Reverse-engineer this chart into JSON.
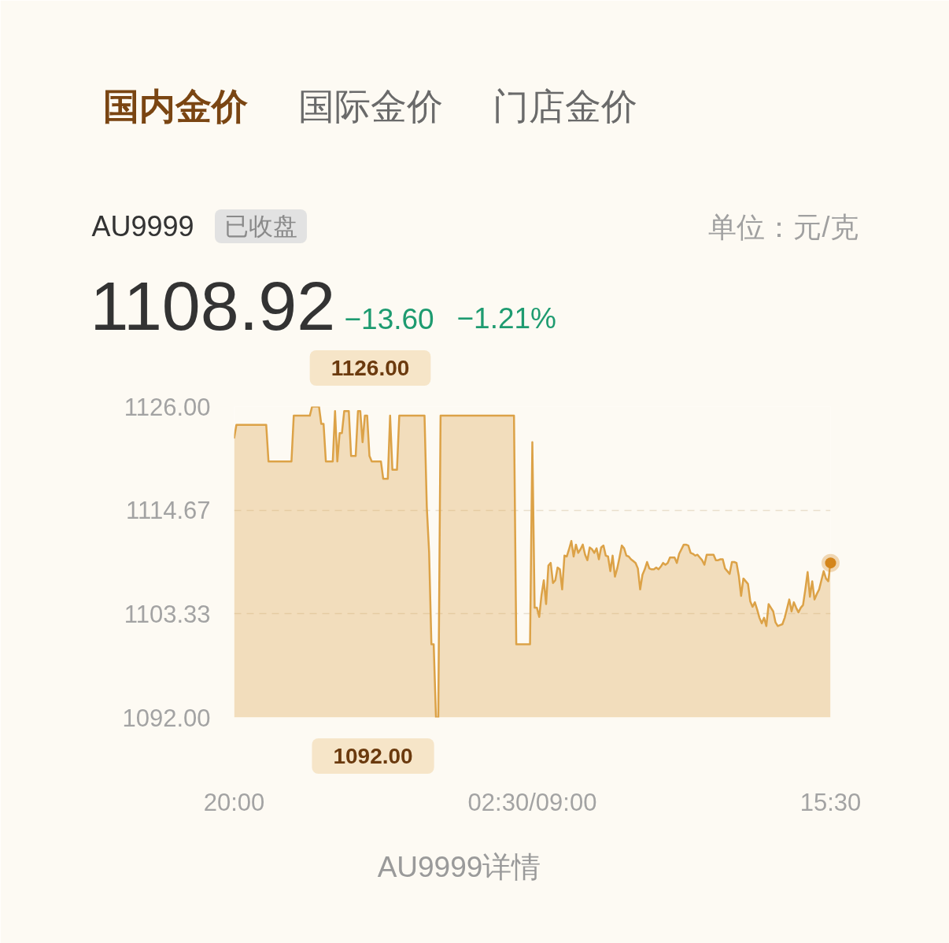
{
  "chart_data": {
    "type": "area",
    "title": "AU9999",
    "annotations": [
      "国内金价",
      "国际金价",
      "门店金价",
      "已收盘",
      "单位：元/克",
      "1108.92",
      "−13.60",
      "−1.21%",
      "1126.00",
      {
        "text": "1092.00",
        "y": 1092
      },
      "AU9999详情"
    ],
    "categories": [
      "20:00",
      null,
      null,
      null,
      null,
      null,
      null,
      null,
      null,
      null,
      null,
      null,
      null,
      null,
      null,
      null,
      null,
      null,
      null,
      null,
      null,
      null,
      null,
      null,
      null,
      null,
      null,
      null,
      null,
      null,
      null,
      null,
      null,
      null,
      null,
      null,
      null,
      null,
      null,
      null,
      null,
      null,
      null,
      null,
      null,
      null,
      null,
      null,
      null,
      null,
      null,
      null,
      null,
      null,
      null,
      null,
      null,
      null,
      null,
      null,
      null,
      null,
      null,
      null,
      null,
      null,
      null,
      null,
      null,
      null,
      null,
      null,
      null,
      null,
      null,
      null,
      null,
      null,
      null,
      null,
      null,
      null,
      null,
      null,
      null,
      null,
      null,
      null,
      null,
      null,
      null,
      null,
      null,
      null,
      null,
      null,
      null,
      null,
      null,
      null,
      null,
      null,
      null,
      null,
      null,
      null,
      null,
      null,
      null,
      null,
      null,
      null,
      null,
      null,
      null,
      null,
      null,
      null,
      null,
      null,
      null,
      null,
      null,
      null,
      null,
      null,
      null,
      null,
      null,
      null,
      "02:30/09:00",
      null,
      null,
      null,
      null,
      null,
      null,
      null,
      null,
      null,
      null,
      null,
      null,
      null,
      null,
      null,
      null,
      null,
      null,
      null,
      null,
      null,
      null,
      null,
      null,
      null,
      null,
      null,
      null,
      null,
      null,
      null,
      null,
      null,
      null,
      null,
      null,
      null,
      null,
      null,
      null,
      null,
      null,
      null,
      null,
      null,
      null,
      null,
      null,
      null,
      null,
      null,
      null,
      null,
      null,
      null,
      null,
      null,
      null,
      null,
      null,
      null,
      null,
      null,
      null,
      null,
      null,
      null,
      null,
      null,
      null,
      null,
      null,
      null,
      null,
      null,
      null,
      null,
      null,
      null,
      null,
      null,
      null,
      null,
      null,
      null,
      null,
      null,
      null,
      null,
      null,
      null,
      null,
      null,
      null,
      null,
      null,
      null,
      null,
      null,
      null,
      null,
      null,
      null,
      null,
      null,
      null,
      null,
      null,
      null,
      null,
      null,
      null,
      null,
      null,
      null,
      null,
      null,
      null,
      null,
      null,
      null,
      null,
      null,
      null,
      null,
      null,
      null,
      null,
      null,
      "15:30"
    ],
    "ylim": [
      1092,
      1126
    ],
    "yticks": [
      {
        "value": 1092,
        "label": "1092.00"
      },
      {
        "value": 1103.33,
        "label": "1103.33"
      },
      {
        "value": 1114.67,
        "label": "1114.67"
      },
      {
        "value": 1126,
        "label": "1126.00"
      }
    ],
    "grid": "y",
    "series": [
      {
        "color": "#dca247",
        "values": [
          1122.5,
          1124,
          1124,
          1124,
          1124,
          1124,
          1124,
          1124,
          1124,
          1124,
          1124,
          1124,
          1124,
          1124,
          1124,
          1120,
          1120,
          1120,
          1120,
          1120,
          1120,
          1120,
          1120,
          1120,
          1120,
          1120,
          1125,
          1125,
          1125,
          1125,
          1125,
          1125,
          1125,
          1125,
          1126,
          1126,
          1126,
          1126,
          1124.1,
          1124.1,
          1120,
          1120,
          1120,
          1120,
          1125.5,
          1120,
          1123.1,
          1123.1,
          1125.5,
          1125.5,
          1125.5,
          1120.6,
          1120.6,
          1120.6,
          1125.5,
          1125.5,
          1122.1,
          1125,
          1125,
          1120.6,
          1120,
          1120,
          1120,
          1120,
          1120,
          1118.1,
          1118.1,
          1118.1,
          1125,
          1119.1,
          1119.1,
          1119.1,
          1125,
          1125,
          1125,
          1125,
          1125,
          1125,
          1125,
          1125,
          1125,
          1125,
          1125,
          1125,
          1115,
          1110.1,
          1100,
          1100,
          1092,
          1092,
          1125,
          1125,
          1125,
          1125,
          1125,
          1125,
          1125,
          1125,
          1125,
          1125,
          1125,
          1125,
          1125,
          1125,
          1125,
          1125,
          1125,
          1125,
          1125,
          1125,
          1125,
          1125,
          1125,
          1125,
          1125,
          1125,
          1125,
          1125,
          1125,
          1125,
          1125,
          1125,
          1125,
          1100,
          1100,
          1100,
          1100,
          1100,
          1100,
          1100,
          1122.1,
          1104.0,
          1104.0,
          1103.0,
          1105.4,
          1107.0,
          1104.4,
          1108.6,
          1108.9,
          1106.7,
          1107.0,
          1108.4,
          1108.2,
          1106.0,
          1109.7,
          1109.6,
          1110.4,
          1111.3,
          1109.6,
          1110.9,
          1110.0,
          1110.4,
          1110.9,
          1109.8,
          1109.2,
          1110.6,
          1110.4,
          1110.0,
          1110.5,
          1109.3,
          1110.6,
          1110.8,
          1109.7,
          1109.6,
          1108.0,
          1109.7,
          1107.4,
          1108.3,
          1109.5,
          1110.8,
          1110.5,
          1109.7,
          1109.6,
          1109.3,
          1109.1,
          1108.9,
          1108.3,
          1106.0,
          1107.6,
          1108.2,
          1109.0,
          1108.3,
          1108.2,
          1108.2,
          1108.4,
          1108.2,
          1108.5,
          1108.9,
          1108.7,
          1108.9,
          1109.5,
          1109.5,
          1109.5,
          1108.9,
          1109.9,
          1110.4,
          1110.9,
          1110.9,
          1110.8,
          1110.0,
          1109.9,
          1109.7,
          1109.8,
          1109.5,
          1109.2,
          1108.7,
          1109.8,
          1109.8,
          1109.8,
          1109.8,
          1109.2,
          1109.2,
          1109.3,
          1109.3,
          1108.3,
          1108.0,
          1107.7,
          1109.0,
          1109.0,
          1108.9,
          1107.5,
          1105.3,
          1107.2,
          1106.9,
          1106.6,
          1104.7,
          1104.1,
          1104.6,
          1103.8,
          1102.9,
          1102.3,
          1102.9,
          1102.0,
          1104.4,
          1104.0,
          1103.6,
          1102.4,
          1102.0,
          1102.1,
          1102.2,
          1102.9,
          1103.9,
          1104.9,
          1103.6,
          1104.6,
          1104.0,
          1103.5,
          1104.0,
          1104.3,
          1106.0,
          1107.9,
          1105.2,
          1106.9,
          1104.9,
          1105.5,
          1106.0,
          1107.0,
          1108.0,
          1107.2,
          1106.9,
          1108.9
        ]
      },
      {
        "type": "scatter",
        "color": "#d4861c",
        "marker": "circle",
        "values": [
          null,
          null,
          null,
          null,
          null,
          null,
          null,
          null,
          null,
          null,
          null,
          null,
          null,
          null,
          null,
          null,
          null,
          null,
          null,
          null,
          null,
          null,
          null,
          null,
          null,
          null,
          null,
          null,
          null,
          null,
          null,
          null,
          null,
          null,
          null,
          null,
          null,
          null,
          null,
          null,
          null,
          null,
          null,
          null,
          null,
          null,
          null,
          null,
          null,
          null,
          null,
          null,
          null,
          null,
          null,
          null,
          null,
          null,
          null,
          null,
          null,
          null,
          null,
          null,
          null,
          null,
          null,
          null,
          null,
          null,
          null,
          null,
          null,
          null,
          null,
          null,
          null,
          null,
          null,
          null,
          null,
          null,
          null,
          null,
          null,
          null,
          null,
          null,
          null,
          null,
          null,
          null,
          null,
          null,
          null,
          null,
          null,
          null,
          null,
          null,
          null,
          null,
          null,
          null,
          null,
          null,
          null,
          null,
          null,
          null,
          null,
          null,
          null,
          null,
          null,
          null,
          null,
          null,
          null,
          null,
          null,
          null,
          null,
          null,
          null,
          null,
          null,
          null,
          null,
          null,
          null,
          null,
          null,
          null,
          null,
          null,
          null,
          null,
          null,
          null,
          null,
          null,
          null,
          null,
          null,
          null,
          null,
          null,
          null,
          null,
          null,
          null,
          null,
          null,
          null,
          null,
          null,
          null,
          null,
          null,
          null,
          null,
          null,
          null,
          null,
          null,
          null,
          null,
          null,
          null,
          null,
          null,
          null,
          null,
          null,
          null,
          null,
          null,
          null,
          null,
          null,
          null,
          null,
          null,
          null,
          null,
          null,
          null,
          null,
          null,
          null,
          null,
          null,
          null,
          null,
          null,
          null,
          null,
          null,
          null,
          null,
          null,
          null,
          null,
          null,
          null,
          null,
          null,
          null,
          null,
          null,
          null,
          null,
          null,
          null,
          null,
          null,
          null,
          null,
          null,
          null,
          null,
          null,
          null,
          null,
          null,
          null,
          null,
          null,
          null,
          null,
          null,
          null,
          null,
          null,
          null,
          null,
          null,
          null,
          null,
          null,
          null,
          null,
          null,
          null,
          null,
          null,
          null,
          null,
          null,
          null,
          null,
          null,
          null,
          null,
          null,
          null,
          null,
          null,
          null,
          1108.9
        ]
      }
    ]
  }
}
